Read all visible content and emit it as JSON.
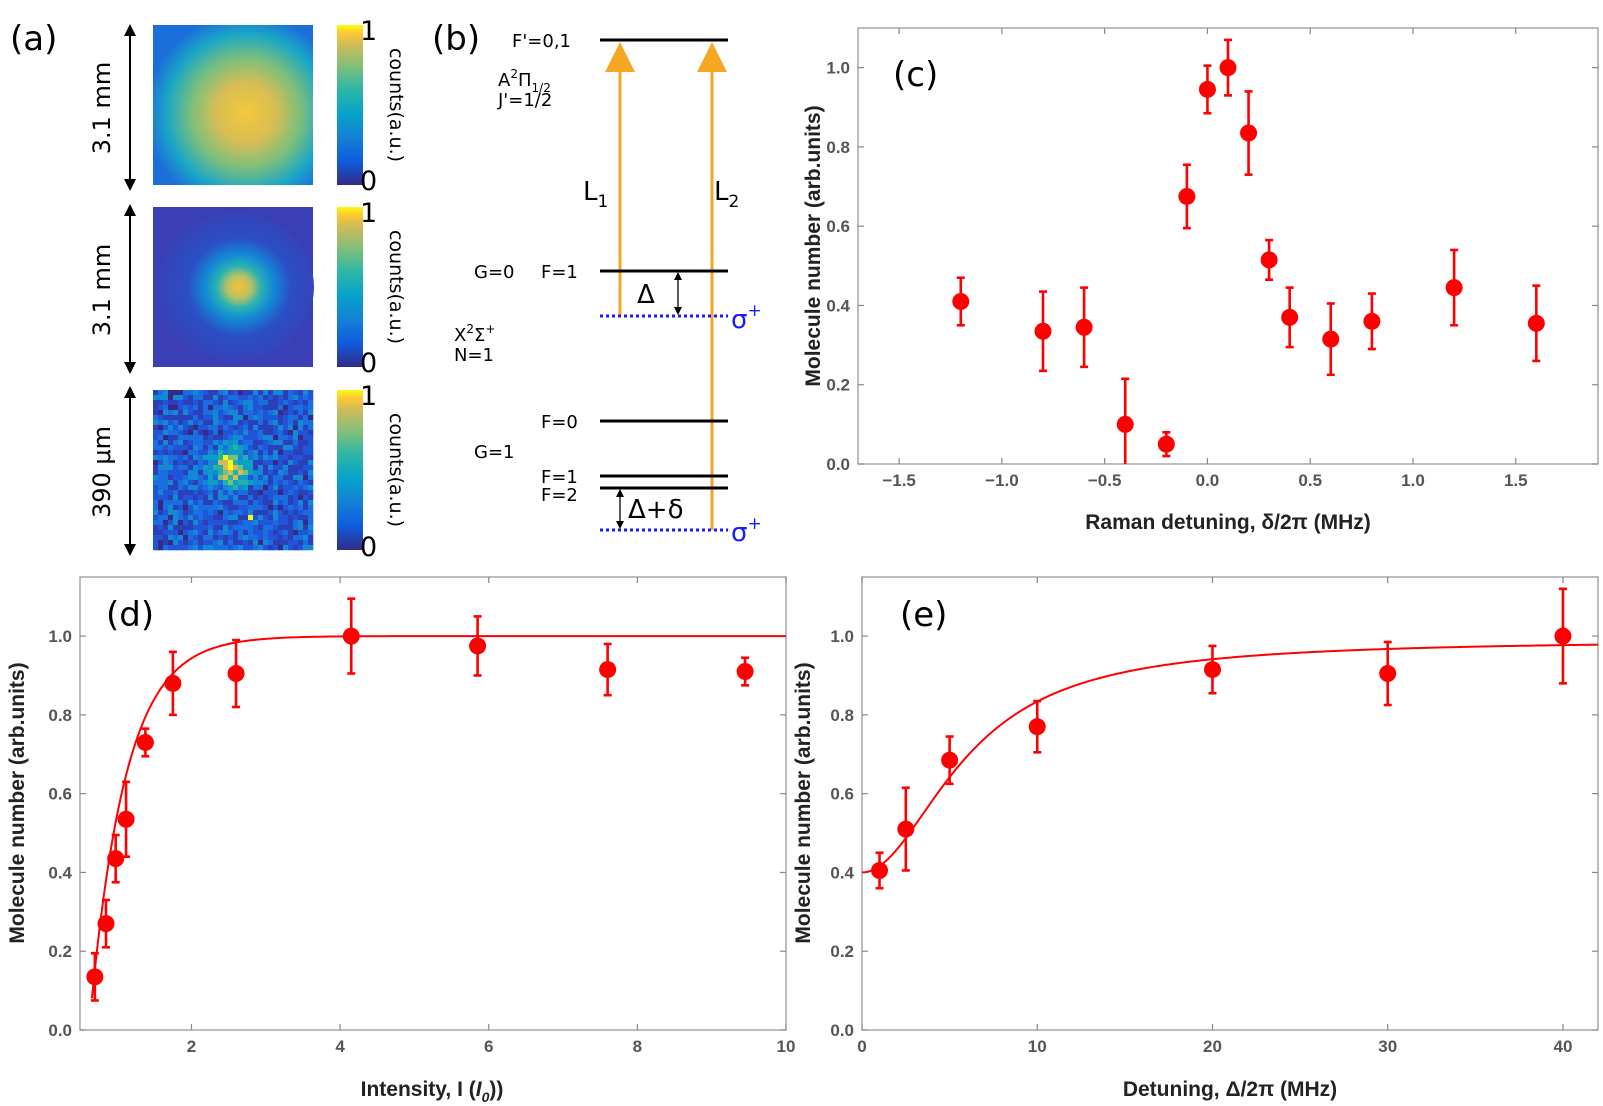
{
  "panel_labels": {
    "a": "(a)",
    "b": "(b)",
    "c": "(c)",
    "d": "(d)",
    "e": "(e)"
  },
  "panel_a": {
    "images": [
      {
        "dimension_label": "3.1 mm",
        "cb_max": "1",
        "cb_min": "0",
        "cb_label": "counts(a.u.)",
        "kind": "cloud-large"
      },
      {
        "dimension_label": "3.1 mm",
        "cb_max": "1",
        "cb_min": "0",
        "cb_label": "counts(a.u.)",
        "kind": "cloud-small"
      },
      {
        "dimension_label": "390 μm",
        "cb_max": "1",
        "cb_min": "0",
        "cb_label": "counts(a.u.)",
        "kind": "pixel-noise"
      }
    ],
    "colors": {
      "low": "#352a87",
      "mid": "#18b9a1",
      "high": "#f9fb0e"
    }
  },
  "panel_b": {
    "excited_level": "F'=0,1",
    "excited_state_main": "A",
    "excited_state_sup": "2",
    "excited_state_pi": "Π",
    "excited_state_sub": "1/2",
    "excited_j": "J'=1/2",
    "ground_state_main": "X",
    "ground_state_sup1": "2",
    "ground_state_sigma": "Σ",
    "ground_state_sup2": "+",
    "ground_n": "N=1",
    "g0_label": "G=0",
    "g0_f1": "F=1",
    "g1_label": "G=1",
    "g1_f0": "F=0",
    "g1_f1": "F=1",
    "g1_f2": "F=2",
    "laser1_letter": "L",
    "laser1_sub": "1",
    "laser2_letter": "L",
    "laser2_sub": "2",
    "delta_label": "Δ",
    "delta_delta_label": "Δ+δ",
    "sigma_label_char": "σ",
    "sigma_label_sup": "+",
    "colors": {
      "laser": "#f5a623",
      "virtual": "#1a1aff"
    }
  },
  "chart_data": [
    {
      "id": "c",
      "type": "scatter",
      "xlabel": "Raman detuning, δ/2π (MHz)",
      "ylabel": "Molecule number (arb.units)",
      "xlim": [
        -1.7,
        1.9
      ],
      "ylim": [
        0.0,
        1.1
      ],
      "xticks": [
        -1.5,
        -1.0,
        -0.5,
        0.0,
        0.5,
        1.0,
        1.5
      ],
      "xtick_labels": [
        "−1.5",
        "−1.0",
        "−0.5",
        "0.0",
        "0.5",
        "1.0",
        "1.5"
      ],
      "yticks": [
        0.0,
        0.2,
        0.4,
        0.6,
        0.8,
        1.0
      ],
      "ytick_labels": [
        "0.0",
        "0.2",
        "0.4",
        "0.6",
        "0.8",
        "1.0"
      ],
      "x": [
        -1.2,
        -0.8,
        -0.6,
        -0.4,
        -0.2,
        -0.1,
        0.0,
        0.1,
        0.2,
        0.3,
        0.4,
        0.6,
        0.8,
        1.2,
        1.6
      ],
      "y": [
        0.41,
        0.335,
        0.345,
        0.1,
        0.05,
        0.675,
        0.945,
        1.0,
        0.835,
        0.515,
        0.37,
        0.315,
        0.36,
        0.445,
        0.355
      ],
      "err": [
        0.06,
        0.1,
        0.1,
        0.115,
        0.03,
        0.08,
        0.06,
        0.07,
        0.105,
        0.05,
        0.075,
        0.09,
        0.07,
        0.095,
        0.095
      ],
      "fit": null,
      "color": "#ff0000"
    },
    {
      "id": "d",
      "type": "scatter",
      "xlabel_main": "Intensity, I (",
      "xlabel_I": "I",
      "xlabel_sub": "0",
      "xlabel_end": "))",
      "ylabel": "Molecule number (arb.units)",
      "xlim": [
        0.5,
        10.0
      ],
      "ylim": [
        0.0,
        1.15
      ],
      "xticks": [
        2,
        4,
        6,
        8,
        10
      ],
      "xtick_labels": [
        "2",
        "4",
        "6",
        "8",
        "10"
      ],
      "yticks": [
        0.0,
        0.2,
        0.4,
        0.6,
        0.8,
        1.0
      ],
      "ytick_labels": [
        "0.0",
        "0.2",
        "0.4",
        "0.6",
        "0.8",
        "1.0"
      ],
      "x": [
        0.7,
        0.85,
        0.98,
        1.12,
        1.38,
        1.75,
        2.6,
        4.15,
        5.85,
        7.6,
        9.45
      ],
      "y": [
        0.135,
        0.27,
        0.435,
        0.535,
        0.73,
        0.88,
        0.905,
        1.0,
        0.975,
        0.915,
        0.91
      ],
      "err": [
        0.06,
        0.06,
        0.06,
        0.095,
        0.035,
        0.08,
        0.085,
        0.095,
        0.075,
        0.065,
        0.035
      ],
      "fit": {
        "model": "1 - exp(-(x - 0.62)/0.48)",
        "x_range": [
          0.66,
          10.0
        ]
      },
      "color": "#ff0000"
    },
    {
      "id": "e",
      "type": "scatter",
      "xlabel": "Detuning, Δ/2π (MHz)",
      "ylabel": "Molecule number (arb.units)",
      "xlim": [
        0,
        42
      ],
      "ylim": [
        0.0,
        1.15
      ],
      "xticks": [
        0,
        10,
        20,
        30,
        40
      ],
      "xtick_labels": [
        "0",
        "10",
        "20",
        "30",
        "40"
      ],
      "yticks": [
        0.0,
        0.2,
        0.4,
        0.6,
        0.8,
        1.0
      ],
      "ytick_labels": [
        "0.0",
        "0.2",
        "0.4",
        "0.6",
        "0.8",
        "1.0"
      ],
      "x": [
        1,
        2.5,
        5,
        10,
        20,
        30,
        40
      ],
      "y": [
        0.405,
        0.51,
        0.685,
        0.77,
        0.915,
        0.905,
        1.0
      ],
      "err": [
        0.045,
        0.105,
        0.06,
        0.065,
        0.06,
        0.08,
        0.12
      ],
      "fit": {
        "model": "0.40 + 0.59*x^2/(x^2+36)",
        "x_range": [
          0,
          42
        ]
      },
      "color": "#ff0000"
    }
  ]
}
